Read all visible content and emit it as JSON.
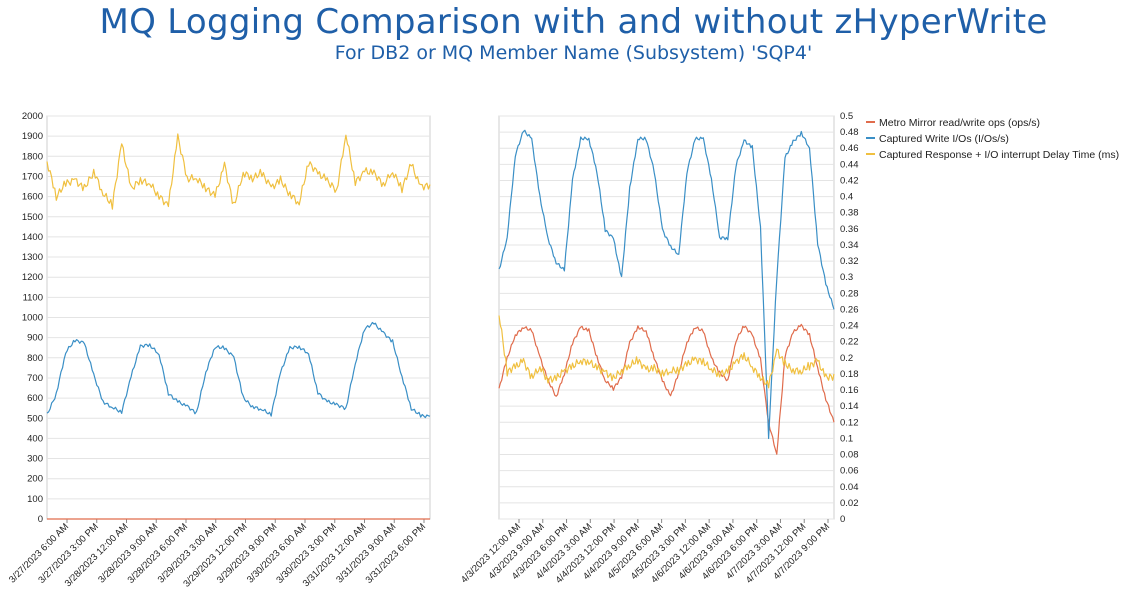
{
  "header": {
    "title": "MQ Logging Comparison with and without zHyperWrite",
    "subtitle": "For DB2 or MQ Member Name (Subsystem) 'SQP4'"
  },
  "legend": {
    "placement": "right",
    "items": [
      {
        "label": "Metro Mirror read/write ops (ops/s)",
        "color": "#e06c4c"
      },
      {
        "label": "Captured Write I/Os (I/Os/s)",
        "color": "#3a8fc6"
      },
      {
        "label": "Captured Response + I/O interrupt Delay Time (ms)",
        "color": "#f0c040"
      }
    ]
  },
  "chart_data": [
    {
      "type": "line",
      "title": "",
      "grid": true,
      "ylim": [
        0,
        2000
      ],
      "y_ticks": [
        "0",
        "100",
        "200",
        "300",
        "400",
        "500",
        "600",
        "700",
        "800",
        "900",
        "1000",
        "1100",
        "1200",
        "1300",
        "1400",
        "1500",
        "1600",
        "1700",
        "1800",
        "1900",
        "2000"
      ],
      "x_ticks": [
        "3/27/2023 6:00 AM",
        "3/27/2023 3:00 PM",
        "3/28/2023 12:00 AM",
        "3/28/2023 9:00 AM",
        "3/28/2023 6:00 PM",
        "3/29/2023 3:00 AM",
        "3/29/2023 12:00 PM",
        "3/29/2023 9:00 PM",
        "3/30/2023 6:00 AM",
        "3/30/2023 3:00 PM",
        "3/31/2023 12:00 AM",
        "3/31/2023 9:00 AM",
        "3/31/2023 6:00 PM"
      ],
      "series": [
        {
          "name": "Metro Mirror read/write ops (ops/s)",
          "color": "#e06c4c",
          "x_hours": [
            0,
            123
          ],
          "values": [
            0,
            0
          ]
        },
        {
          "name": "Captured Write I/Os (I/Os/s)",
          "color": "#3a8fc6",
          "x_hours": [
            0,
            3,
            6,
            9,
            12,
            15,
            18,
            21,
            24,
            27,
            30,
            33,
            36,
            39,
            42,
            45,
            48,
            51,
            54,
            57,
            60,
            63,
            66,
            69,
            72,
            75,
            78,
            81,
            84,
            87,
            90,
            93,
            96,
            99,
            102,
            105,
            108,
            111,
            114,
            117,
            120,
            123
          ],
          "values": [
            520,
            620,
            820,
            880,
            870,
            720,
            590,
            560,
            530,
            700,
            850,
            860,
            820,
            630,
            590,
            560,
            520,
            720,
            850,
            850,
            810,
            610,
            560,
            540,
            510,
            720,
            850,
            860,
            830,
            630,
            580,
            560,
            540,
            770,
            950,
            980,
            930,
            880,
            700,
            540,
            510,
            510
          ]
        },
        {
          "name": "Captured Response + I/O interrupt Delay Time (ms)",
          "color": "#f0c040",
          "x_hours": [
            0,
            3,
            6,
            9,
            12,
            15,
            18,
            21,
            24,
            27,
            30,
            33,
            36,
            39,
            42,
            45,
            48,
            51,
            54,
            57,
            60,
            63,
            66,
            69,
            72,
            75,
            78,
            81,
            84,
            87,
            90,
            93,
            96,
            99,
            102,
            105,
            108,
            111,
            114,
            117,
            120,
            123
          ],
          "values": [
            1760,
            1600,
            1680,
            1700,
            1650,
            1720,
            1600,
            1540,
            1860,
            1650,
            1700,
            1680,
            1600,
            1540,
            1880,
            1680,
            1700,
            1660,
            1620,
            1760,
            1540,
            1700,
            1680,
            1720,
            1660,
            1700,
            1620,
            1560,
            1750,
            1700,
            1680,
            1640,
            1930,
            1680,
            1720,
            1700,
            1640,
            1720,
            1650,
            1780,
            1660,
            1660
          ]
        }
      ]
    },
    {
      "type": "line",
      "title": "",
      "grid": true,
      "ylim": [
        0,
        0.5
      ],
      "y_axis_position": "right",
      "y_ticks": [
        "0",
        "0.02",
        "0.04",
        "0.06",
        "0.08",
        "0.1",
        "0.12",
        "0.14",
        "0.16",
        "0.18",
        "0.2",
        "0.22",
        "0.24",
        "0.26",
        "0.28",
        "0.3",
        "0.32",
        "0.34",
        "0.36",
        "0.38",
        "0.4",
        "0.42",
        "0.44",
        "0.46",
        "0.48",
        "0.5"
      ],
      "x_ticks": [
        "4/3/2023 12:00 AM",
        "4/3/2023 9:00 AM",
        "4/3/2023 6:00 PM",
        "4/4/2023 3:00 AM",
        "4/4/2023 12:00 PM",
        "4/4/2023 9:00 PM",
        "4/5/2023 6:00 AM",
        "4/5/2023 3:00 PM",
        "4/6/2023 12:00 AM",
        "4/6/2023 9:00 AM",
        "4/6/2023 6:00 PM",
        "4/7/2023 3:00 AM",
        "4/7/2023 12:00 PM",
        "4/7/2023 9:00 PM"
      ],
      "series": [
        {
          "name": "Metro Mirror read/write ops (ops/s)",
          "color": "#e06c4c",
          "x_hours": [
            0,
            3,
            6,
            9,
            12,
            15,
            18,
            21,
            24,
            27,
            30,
            33,
            36,
            39,
            42,
            45,
            48,
            51,
            54,
            57,
            60,
            63,
            66,
            69,
            72,
            75,
            78,
            81,
            84,
            87,
            90,
            93,
            96,
            99,
            102,
            105,
            108,
            111,
            114,
            117,
            120,
            123
          ],
          "values": [
            0.16,
            0.2,
            0.23,
            0.24,
            0.235,
            0.2,
            0.17,
            0.15,
            0.18,
            0.22,
            0.24,
            0.235,
            0.2,
            0.17,
            0.16,
            0.175,
            0.22,
            0.24,
            0.235,
            0.2,
            0.17,
            0.15,
            0.18,
            0.22,
            0.24,
            0.235,
            0.2,
            0.18,
            0.17,
            0.22,
            0.24,
            0.23,
            0.2,
            0.12,
            0.08,
            0.2,
            0.23,
            0.24,
            0.23,
            0.19,
            0.15,
            0.12
          ]
        },
        {
          "name": "Captured Write I/Os (I/Os/s)",
          "color": "#3a8fc6",
          "x_hours": [
            0,
            3,
            6,
            9,
            12,
            15,
            18,
            21,
            24,
            27,
            30,
            33,
            36,
            39,
            42,
            45,
            48,
            51,
            54,
            57,
            60,
            63,
            66,
            69,
            72,
            75,
            78,
            81,
            84,
            87,
            90,
            93,
            96,
            99,
            102,
            105,
            108,
            111,
            114,
            117,
            120,
            123
          ],
          "values": [
            0.31,
            0.35,
            0.45,
            0.48,
            0.47,
            0.4,
            0.35,
            0.32,
            0.31,
            0.42,
            0.47,
            0.47,
            0.43,
            0.36,
            0.35,
            0.3,
            0.41,
            0.47,
            0.47,
            0.43,
            0.36,
            0.34,
            0.33,
            0.43,
            0.47,
            0.47,
            0.42,
            0.35,
            0.35,
            0.44,
            0.47,
            0.46,
            0.36,
            0.1,
            0.3,
            0.45,
            0.47,
            0.48,
            0.46,
            0.34,
            0.29,
            0.26
          ]
        },
        {
          "name": "Captured Response + I/O interrupt Delay Time (ms)",
          "color": "#f0c040",
          "x_hours": [
            0,
            3,
            6,
            9,
            12,
            15,
            18,
            21,
            24,
            27,
            30,
            33,
            36,
            39,
            42,
            45,
            48,
            51,
            54,
            57,
            60,
            63,
            66,
            69,
            72,
            75,
            78,
            81,
            84,
            87,
            90,
            93,
            96,
            99,
            102,
            105,
            108,
            111,
            114,
            117,
            120,
            123
          ],
          "values": [
            0.25,
            0.18,
            0.19,
            0.2,
            0.18,
            0.19,
            0.17,
            0.17,
            0.18,
            0.19,
            0.2,
            0.2,
            0.19,
            0.18,
            0.17,
            0.18,
            0.19,
            0.2,
            0.19,
            0.19,
            0.18,
            0.18,
            0.18,
            0.19,
            0.2,
            0.2,
            0.19,
            0.18,
            0.18,
            0.19,
            0.2,
            0.19,
            0.18,
            0.17,
            0.21,
            0.19,
            0.18,
            0.18,
            0.19,
            0.2,
            0.18,
            0.18
          ]
        }
      ]
    }
  ]
}
